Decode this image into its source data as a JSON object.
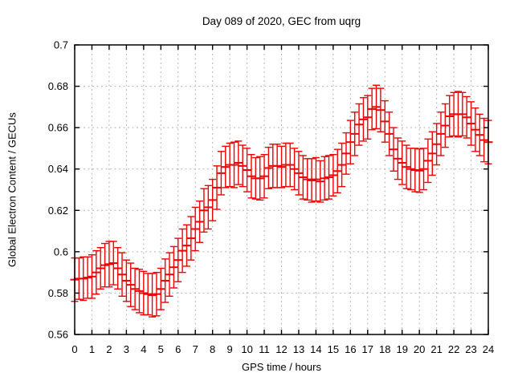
{
  "window": {
    "title": "Day 089 of 2020, GEC from uqrg"
  },
  "chart_data": {
    "type": "scatter",
    "style": "yerrorbars",
    "title": "Day 089 of 2020, GEC from uqrg",
    "xlabel": "GPS time / hours",
    "ylabel": "Global Electron Content / GECUs",
    "xlim": [
      0,
      24
    ],
    "ylim": [
      0.56,
      0.7
    ],
    "grid": true,
    "legend": "none",
    "xticks": [
      0,
      1,
      2,
      3,
      4,
      5,
      6,
      7,
      8,
      9,
      10,
      11,
      12,
      13,
      14,
      15,
      16,
      17,
      18,
      19,
      20,
      21,
      22,
      23,
      24
    ],
    "yticks": [
      [
        0.56,
        "0.56"
      ],
      [
        0.58,
        "0.58"
      ],
      [
        0.6,
        "0.6"
      ],
      [
        0.62,
        "0.62"
      ],
      [
        0.64,
        "0.64"
      ],
      [
        0.66,
        "0.66"
      ],
      [
        0.68,
        "0.68"
      ],
      [
        0.7,
        "0.7"
      ]
    ],
    "colors": {
      "series": "#ee0000",
      "grid": "#b4b4b4",
      "axis": "#000000",
      "text": "#000000",
      "background": "#ffffff"
    },
    "series": [
      {
        "name": "GEC",
        "point_format": [
          "gps_hour",
          "gec_gecus",
          "error_halfwidth"
        ],
        "points": [
          [
            0.0,
            0.5865,
            0.0105
          ],
          [
            0.25,
            0.587,
            0.01
          ],
          [
            0.5,
            0.587,
            0.0105
          ],
          [
            0.75,
            0.5875,
            0.01
          ],
          [
            1.0,
            0.588,
            0.0105
          ],
          [
            1.25,
            0.59,
            0.0105
          ],
          [
            1.5,
            0.592,
            0.01
          ],
          [
            1.75,
            0.5935,
            0.0105
          ],
          [
            2.0,
            0.594,
            0.011
          ],
          [
            2.25,
            0.5945,
            0.0105
          ],
          [
            2.5,
            0.592,
            0.01
          ],
          [
            2.75,
            0.589,
            0.0105
          ],
          [
            3.0,
            0.586,
            0.01
          ],
          [
            3.25,
            0.584,
            0.0105
          ],
          [
            3.5,
            0.582,
            0.01
          ],
          [
            3.75,
            0.581,
            0.0105
          ],
          [
            4.0,
            0.58,
            0.0105
          ],
          [
            4.25,
            0.5795,
            0.01
          ],
          [
            4.5,
            0.579,
            0.0105
          ],
          [
            4.75,
            0.5795,
            0.0105
          ],
          [
            5.0,
            0.582,
            0.01
          ],
          [
            5.25,
            0.586,
            0.0105
          ],
          [
            5.5,
            0.589,
            0.0105
          ],
          [
            5.75,
            0.5925,
            0.01
          ],
          [
            6.0,
            0.596,
            0.0105
          ],
          [
            6.25,
            0.6005,
            0.0105
          ],
          [
            6.5,
            0.603,
            0.01
          ],
          [
            6.75,
            0.6065,
            0.0105
          ],
          [
            7.0,
            0.611,
            0.0105
          ],
          [
            7.25,
            0.6145,
            0.01
          ],
          [
            7.5,
            0.62,
            0.0105
          ],
          [
            7.75,
            0.6215,
            0.0105
          ],
          [
            8.0,
            0.625,
            0.01
          ],
          [
            8.25,
            0.631,
            0.0105
          ],
          [
            8.5,
            0.638,
            0.0105
          ],
          [
            8.75,
            0.641,
            0.01
          ],
          [
            9.0,
            0.642,
            0.0105
          ],
          [
            9.25,
            0.642,
            0.011
          ],
          [
            9.5,
            0.643,
            0.0105
          ],
          [
            9.75,
            0.6415,
            0.01
          ],
          [
            10.0,
            0.6395,
            0.0105
          ],
          [
            10.25,
            0.6365,
            0.0105
          ],
          [
            10.5,
            0.6355,
            0.01
          ],
          [
            10.75,
            0.6355,
            0.0105
          ],
          [
            11.0,
            0.6365,
            0.0105
          ],
          [
            11.25,
            0.6405,
            0.01
          ],
          [
            11.5,
            0.6415,
            0.0105
          ],
          [
            11.75,
            0.6415,
            0.0105
          ],
          [
            12.0,
            0.641,
            0.01
          ],
          [
            12.25,
            0.642,
            0.0105
          ],
          [
            12.5,
            0.642,
            0.0105
          ],
          [
            12.75,
            0.64,
            0.01
          ],
          [
            13.0,
            0.638,
            0.0105
          ],
          [
            13.25,
            0.636,
            0.0105
          ],
          [
            13.5,
            0.635,
            0.01
          ],
          [
            13.75,
            0.6345,
            0.0105
          ],
          [
            14.0,
            0.635,
            0.0105
          ],
          [
            14.25,
            0.634,
            0.01
          ],
          [
            14.5,
            0.6355,
            0.0105
          ],
          [
            14.75,
            0.636,
            0.0105
          ],
          [
            15.0,
            0.637,
            0.01
          ],
          [
            15.25,
            0.639,
            0.0105
          ],
          [
            15.5,
            0.642,
            0.0105
          ],
          [
            15.75,
            0.6475,
            0.01
          ],
          [
            16.0,
            0.653,
            0.0105
          ],
          [
            16.25,
            0.657,
            0.0105
          ],
          [
            16.5,
            0.6615,
            0.01
          ],
          [
            16.75,
            0.664,
            0.0105
          ],
          [
            17.0,
            0.665,
            0.0105
          ],
          [
            17.25,
            0.669,
            0.01
          ],
          [
            17.5,
            0.67,
            0.0105
          ],
          [
            17.75,
            0.6685,
            0.0105
          ],
          [
            18.0,
            0.663,
            0.01
          ],
          [
            18.25,
            0.657,
            0.0105
          ],
          [
            18.5,
            0.6495,
            0.0105
          ],
          [
            18.75,
            0.645,
            0.01
          ],
          [
            19.0,
            0.643,
            0.0105
          ],
          [
            19.25,
            0.641,
            0.0105
          ],
          [
            19.5,
            0.64,
            0.01
          ],
          [
            19.75,
            0.6395,
            0.0105
          ],
          [
            20.0,
            0.6392,
            0.0105
          ],
          [
            20.25,
            0.64,
            0.01
          ],
          [
            20.5,
            0.644,
            0.0105
          ],
          [
            20.75,
            0.6475,
            0.0105
          ],
          [
            21.0,
            0.652,
            0.01
          ],
          [
            21.25,
            0.657,
            0.0105
          ],
          [
            21.5,
            0.661,
            0.0105
          ],
          [
            21.75,
            0.6655,
            0.01
          ],
          [
            22.0,
            0.6665,
            0.0105
          ],
          [
            22.25,
            0.6665,
            0.011
          ],
          [
            22.5,
            0.6665,
            0.0105
          ],
          [
            22.75,
            0.665,
            0.01
          ],
          [
            23.0,
            0.662,
            0.0105
          ],
          [
            23.25,
            0.659,
            0.0105
          ],
          [
            23.5,
            0.6565,
            0.01
          ],
          [
            23.75,
            0.654,
            0.0105
          ],
          [
            24.0,
            0.653,
            0.0105
          ]
        ]
      }
    ]
  }
}
